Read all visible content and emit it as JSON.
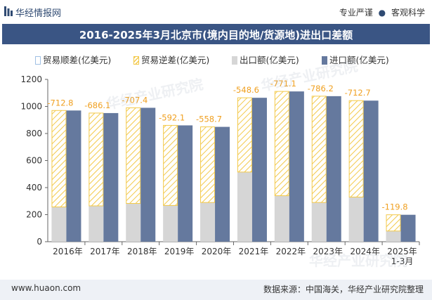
{
  "header": {
    "brand": "华经情报网",
    "tag1": "专业严谨",
    "tag2": "客观科学"
  },
  "title": "2016-2025年3月北京市(境内目的地/货源地)进出口差额",
  "legend": {
    "ratio": "贸易顺差(亿美元)",
    "deficit": "贸易逆差(亿美元)",
    "export": "出口额(亿美元)",
    "import": "进口额(亿美元)"
  },
  "footer": {
    "site": "www.huaon.com",
    "source": "数据来源：中国海关，华经产业研究院整理"
  },
  "watermark": "华经产业研究院",
  "colors": {
    "import": "#65799e",
    "export": "#d6d6d6",
    "deficit": "#f3c94a",
    "label": "#f0a020"
  },
  "chart_data": {
    "type": "bar",
    "categories": [
      "2016年",
      "2017年",
      "2018年",
      "2019年",
      "2020年",
      "2021年",
      "2022年",
      "2023年",
      "2024年",
      "2025年\n1-3月"
    ],
    "series": [
      {
        "name": "出口额(亿美元)",
        "values": [
          257,
          265,
          283,
          268,
          290,
          515,
          340,
          290,
          330,
          79
        ]
      },
      {
        "name": "进口额(亿美元)",
        "values": [
          970,
          951,
          990,
          860,
          849,
          1064,
          1111,
          1076,
          1043,
          199
        ]
      },
      {
        "name": "贸易逆差(亿美元)",
        "values": [
          -712.8,
          -686.1,
          -707.4,
          -592.1,
          -558.7,
          -548.6,
          -771.1,
          -786.2,
          -712.7,
          -119.8
        ]
      }
    ],
    "deficit_labels": [
      "-712.8",
      "-686.1",
      "-707.4",
      "-592.1",
      "-558.7",
      "-548.6",
      "-771.1",
      "-786.2",
      "-712.7",
      "-119.8"
    ],
    "yticks": [
      "0",
      "200",
      "400",
      "600",
      "800",
      "1000",
      "1200"
    ],
    "ylim": [
      0,
      1200
    ],
    "grid": false
  }
}
